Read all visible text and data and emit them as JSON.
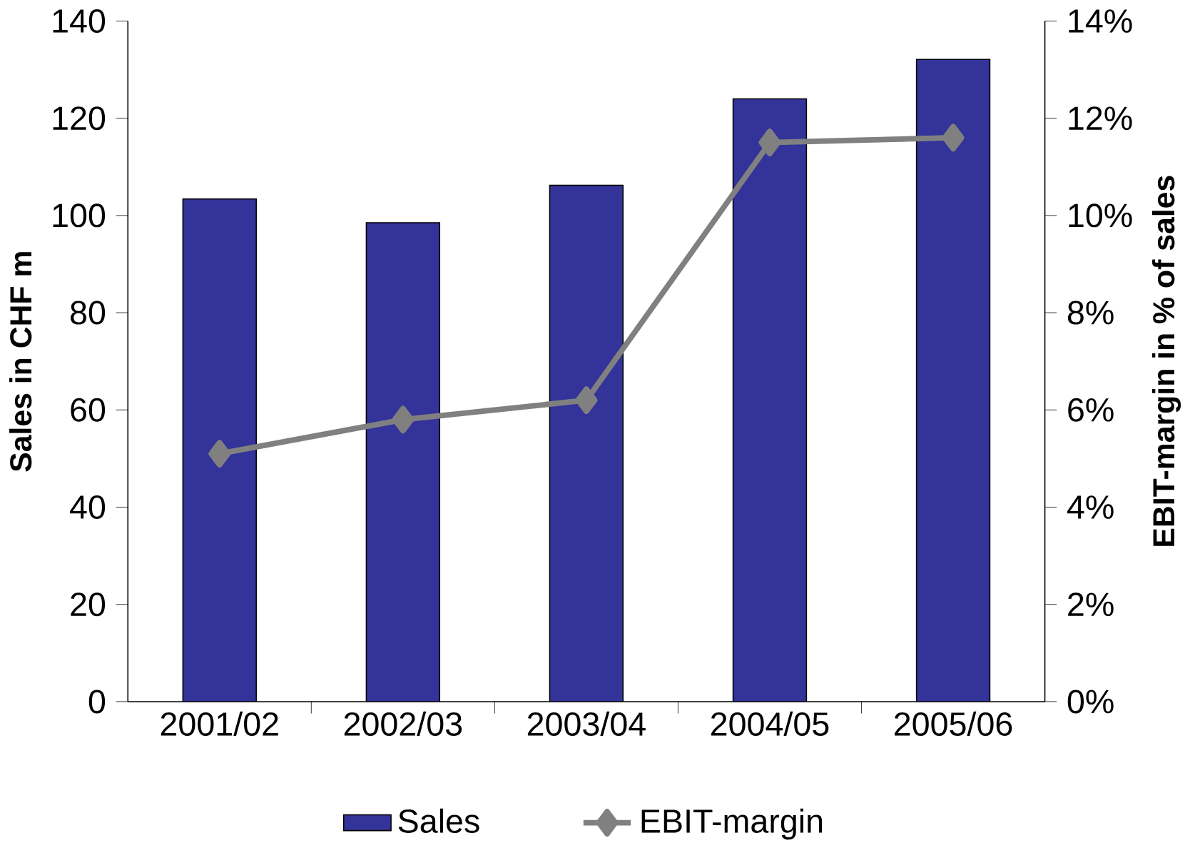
{
  "chart_data": {
    "type": "bar",
    "categories": [
      "2001/02",
      "2002/03",
      "2003/04",
      "2004/05",
      "2005/06"
    ],
    "ylabel": "Sales in CHF m",
    "y2label": "EBIT-margin in % of sales",
    "series": [
      {
        "name": "Sales",
        "color": "#333399",
        "values": [
          103.4,
          98.5,
          106.2,
          124.0,
          132.1
        ]
      },
      {
        "name": "EBIT-margin",
        "type": "line",
        "axis": "y2",
        "color": "#808080",
        "marker": "diamond",
        "values": [
          5.1,
          5.8,
          6.2,
          11.5,
          11.6
        ]
      }
    ],
    "ylim": [
      0,
      140
    ],
    "yticks": [
      0,
      20,
      40,
      60,
      80,
      100,
      120,
      140
    ],
    "y2lim": [
      0,
      14
    ],
    "y2ticks": [
      {
        "value": 0,
        "label": "0%"
      },
      {
        "value": 2,
        "label": "2%"
      },
      {
        "value": 4,
        "label": "4%"
      },
      {
        "value": 6,
        "label": "6%"
      },
      {
        "value": 8,
        "label": "8%"
      },
      {
        "value": 10,
        "label": "10%"
      },
      {
        "value": 12,
        "label": "12%"
      },
      {
        "value": 14,
        "label": "14%"
      }
    ],
    "legend": "bottom",
    "grid": false
  }
}
